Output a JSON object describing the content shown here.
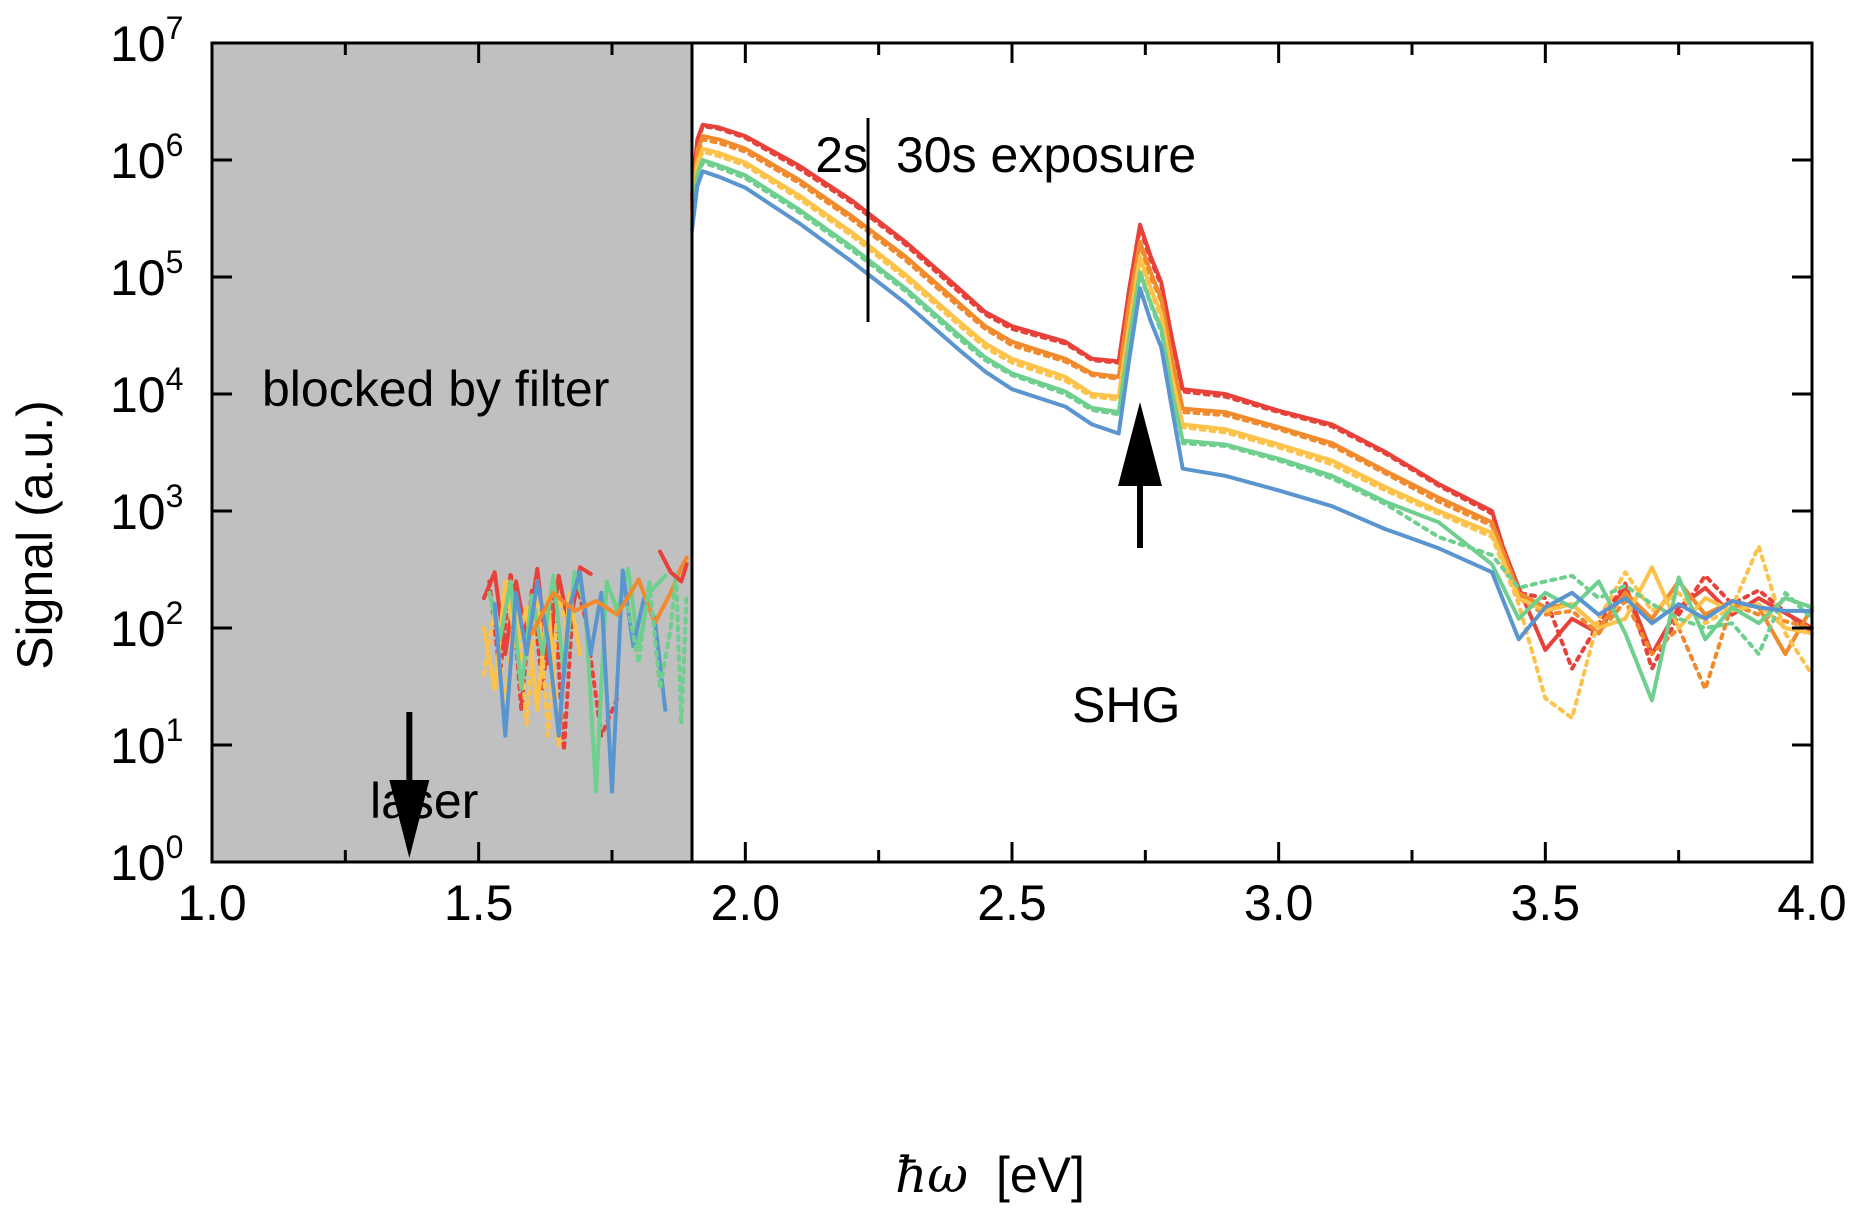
{
  "chart_data": {
    "type": "line",
    "title": "",
    "xlabel_symbol": "ħω",
    "xlabel_unit": "[eV]",
    "ylabel": "Signal (a.u.)",
    "xlim": [
      1.0,
      4.0
    ],
    "ylim": [
      1,
      10000000
    ],
    "yscale": "log",
    "x_ticks": [
      1.0,
      1.5,
      2.0,
      2.5,
      3.0,
      3.5,
      4.0
    ],
    "x_tick_labels": [
      "1.0",
      "1.5",
      "2.0",
      "2.5",
      "3.0",
      "3.5",
      "4.0"
    ],
    "y_ticks": [
      1,
      10,
      100,
      1000,
      10000,
      100000,
      1000000,
      10000000
    ],
    "y_tick_base": "10",
    "y_tick_exponents": [
      "0",
      "1",
      "2",
      "3",
      "4",
      "5",
      "6",
      "7"
    ],
    "grid": false,
    "shaded_region": {
      "x": [
        1.0,
        1.9
      ],
      "color": "#c0c0c0"
    },
    "annotations": {
      "blocked": "blocked by filter",
      "laser": "laser",
      "shg": "SHG",
      "exposure_short": "2s",
      "exposure_long": "30s exposure"
    },
    "markers": {
      "exposure_divider_x": 2.23,
      "laser_x": 1.37,
      "shg_x": 2.74
    },
    "series_colors": [
      "#e8413a",
      "#f08a2c",
      "#fcc24a",
      "#6fcf8f",
      "#5b95cf"
    ],
    "series": [
      {
        "color": "#e8413a",
        "dash": "solid",
        "x": [
          1.9,
          1.91,
          1.92,
          1.95,
          2.0,
          2.1,
          2.2,
          2.3,
          2.4,
          2.45,
          2.5,
          2.6,
          2.65,
          2.7,
          2.72,
          2.74,
          2.76,
          2.78,
          2.8,
          2.82,
          2.9,
          3.0,
          3.1,
          3.2,
          3.3,
          3.4,
          3.42,
          3.45,
          3.5,
          3.55,
          3.6,
          3.65,
          3.7,
          3.75,
          3.8,
          3.85,
          3.9,
          4.0
        ],
        "y": [
          500000,
          1500000,
          2000000,
          1900000,
          1600000,
          900000,
          450000,
          200000,
          80000,
          50000,
          38000,
          28000,
          20000,
          19000,
          80000,
          280000,
          150000,
          90000,
          30000,
          11000,
          10000,
          7200,
          5500,
          3200,
          1700,
          1000,
          500,
          220,
          65,
          120,
          90,
          230,
          60,
          150,
          220,
          130,
          180,
          100
        ]
      },
      {
        "color": "#e8413a",
        "dash": "dotted",
        "x": [
          1.9,
          1.91,
          1.92,
          1.95,
          2.0,
          2.1,
          2.2,
          2.3,
          2.4,
          2.45,
          2.5,
          2.6,
          2.65,
          2.7,
          2.72,
          2.74,
          2.76,
          2.78,
          2.8,
          2.82,
          2.9,
          3.0,
          3.1,
          3.2,
          3.3,
          3.4,
          3.45,
          3.5,
          3.55,
          3.6,
          3.65,
          3.7,
          3.75,
          3.8,
          3.85,
          3.9,
          4.0
        ],
        "y": [
          450000,
          1400000,
          1950000,
          1850000,
          1550000,
          850000,
          430000,
          190000,
          75000,
          48000,
          36000,
          27000,
          19500,
          18500,
          75000,
          260000,
          140000,
          85000,
          29000,
          10500,
          9500,
          7000,
          5300,
          3100,
          1650,
          950,
          200,
          180,
          45,
          110,
          240,
          45,
          130,
          280,
          160,
          210,
          90
        ]
      },
      {
        "color": "#f08a2c",
        "dash": "solid",
        "x": [
          1.9,
          1.91,
          1.92,
          1.95,
          2.0,
          2.1,
          2.2,
          2.3,
          2.4,
          2.45,
          2.5,
          2.6,
          2.65,
          2.7,
          2.72,
          2.74,
          2.76,
          2.78,
          2.8,
          2.82,
          2.9,
          3.0,
          3.1,
          3.2,
          3.3,
          3.4,
          3.45,
          3.5,
          3.55,
          3.6,
          3.65,
          3.7,
          3.75,
          3.8,
          3.85,
          3.9,
          3.95,
          4.0
        ],
        "y": [
          400000,
          1200000,
          1600000,
          1500000,
          1250000,
          680000,
          330000,
          150000,
          60000,
          38000,
          28000,
          20000,
          15000,
          14000,
          60000,
          200000,
          110000,
          65000,
          20000,
          7500,
          7000,
          5200,
          3800,
          2200,
          1300,
          800,
          200,
          150,
          160,
          100,
          200,
          120,
          250,
          130,
          170,
          150,
          60,
          150
        ]
      },
      {
        "color": "#f08a2c",
        "dash": "dotted",
        "x": [
          1.9,
          1.91,
          1.92,
          1.95,
          2.0,
          2.1,
          2.2,
          2.3,
          2.4,
          2.45,
          2.5,
          2.6,
          2.65,
          2.7,
          2.72,
          2.74,
          2.76,
          2.78,
          2.8,
          2.82,
          2.9,
          3.0,
          3.1,
          3.2,
          3.3,
          3.4,
          3.45,
          3.5,
          3.55,
          3.6,
          3.65,
          3.7,
          3.75,
          3.8,
          3.85,
          3.9,
          4.0
        ],
        "y": [
          380000,
          1100000,
          1500000,
          1400000,
          1180000,
          640000,
          310000,
          140000,
          56000,
          36000,
          26000,
          19000,
          14500,
          13500,
          55000,
          190000,
          100000,
          62000,
          19000,
          7000,
          6600,
          5000,
          3600,
          2100,
          1200,
          750,
          180,
          130,
          140,
          90,
          170,
          60,
          100,
          30,
          160,
          130,
          100
        ]
      },
      {
        "color": "#fcc24a",
        "dash": "solid",
        "x": [
          1.9,
          1.91,
          1.92,
          1.95,
          2.0,
          2.1,
          2.2,
          2.3,
          2.4,
          2.45,
          2.5,
          2.6,
          2.65,
          2.7,
          2.72,
          2.74,
          2.76,
          2.78,
          2.8,
          2.82,
          2.9,
          3.0,
          3.1,
          3.2,
          3.3,
          3.4,
          3.45,
          3.5,
          3.55,
          3.6,
          3.65,
          3.7,
          3.75,
          3.8,
          3.85,
          3.9,
          3.95,
          4.0
        ],
        "y": [
          350000,
          950000,
          1250000,
          1150000,
          950000,
          500000,
          240000,
          105000,
          42000,
          27000,
          20000,
          14000,
          10000,
          9500,
          40000,
          150000,
          80000,
          48000,
          14000,
          5500,
          5000,
          3700,
          2700,
          1600,
          1000,
          650,
          180,
          140,
          160,
          100,
          120,
          330,
          100,
          180,
          140,
          160,
          100,
          90
        ]
      },
      {
        "color": "#fcc24a",
        "dash": "dotted",
        "x": [
          1.9,
          1.91,
          1.92,
          1.95,
          2.0,
          2.1,
          2.2,
          2.3,
          2.4,
          2.45,
          2.5,
          2.6,
          2.65,
          2.7,
          2.72,
          2.74,
          2.76,
          2.78,
          2.8,
          2.82,
          2.9,
          3.0,
          3.1,
          3.2,
          3.3,
          3.4,
          3.45,
          3.5,
          3.55,
          3.6,
          3.65,
          3.7,
          3.75,
          3.8,
          3.85,
          3.9,
          3.95,
          4.0
        ],
        "y": [
          330000,
          900000,
          1180000,
          1080000,
          900000,
          470000,
          225000,
          98000,
          39000,
          25000,
          18500,
          13000,
          9500,
          9000,
          37000,
          140000,
          75000,
          45000,
          13000,
          5200,
          4700,
          3500,
          2500,
          1500,
          950,
          600,
          160,
          25,
          17,
          120,
          300,
          140,
          200,
          110,
          150,
          500,
          90,
          40
        ]
      },
      {
        "color": "#6fcf8f",
        "dash": "solid",
        "x": [
          1.9,
          1.91,
          1.92,
          1.95,
          2.0,
          2.1,
          2.2,
          2.3,
          2.4,
          2.45,
          2.5,
          2.6,
          2.65,
          2.7,
          2.72,
          2.74,
          2.76,
          2.78,
          2.8,
          2.82,
          2.9,
          3.0,
          3.1,
          3.2,
          3.3,
          3.4,
          3.45,
          3.5,
          3.55,
          3.6,
          3.65,
          3.7,
          3.75,
          3.8,
          3.85,
          3.9,
          3.95,
          4.0
        ],
        "y": [
          300000,
          750000,
          1000000,
          900000,
          740000,
          380000,
          180000,
          80000,
          32000,
          20500,
          15000,
          10500,
          7600,
          7000,
          30000,
          110000,
          60000,
          36000,
          10500,
          4000,
          3700,
          2800,
          2000,
          1200,
          800,
          350,
          120,
          200,
          150,
          250,
          90,
          24,
          270,
          80,
          150,
          110,
          180,
          150
        ]
      },
      {
        "color": "#6fcf8f",
        "dash": "dotted",
        "x": [
          1.9,
          1.91,
          1.92,
          1.95,
          2.0,
          2.1,
          2.2,
          2.3,
          2.4,
          2.45,
          2.5,
          2.6,
          2.65,
          2.7,
          2.72,
          2.74,
          2.76,
          2.78,
          2.8,
          2.82,
          2.9,
          3.0,
          3.1,
          3.2,
          3.3,
          3.4,
          3.45,
          3.5,
          3.55,
          3.6,
          3.65,
          3.7,
          3.75,
          3.8,
          3.85,
          3.9,
          3.95,
          4.0
        ],
        "y": [
          280000,
          700000,
          950000,
          860000,
          700000,
          360000,
          170000,
          76000,
          30000,
          19500,
          14500,
          10000,
          7300,
          6700,
          28000,
          105000,
          58000,
          34000,
          10000,
          3800,
          3600,
          2700,
          1900,
          1150,
          600,
          420,
          220,
          250,
          280,
          180,
          230,
          160,
          120,
          100,
          110,
          60,
          200,
          120
        ]
      },
      {
        "color": "#5b95cf",
        "dash": "solid",
        "x": [
          1.9,
          1.91,
          1.92,
          1.95,
          2.0,
          2.1,
          2.2,
          2.3,
          2.4,
          2.45,
          2.5,
          2.6,
          2.65,
          2.7,
          2.72,
          2.74,
          2.76,
          2.78,
          2.8,
          2.82,
          2.9,
          3.0,
          3.1,
          3.2,
          3.3,
          3.4,
          3.45,
          3.5,
          3.55,
          3.6,
          3.65,
          3.7,
          3.75,
          3.8,
          3.85,
          3.9,
          3.95,
          4.0
        ],
        "y": [
          250000,
          600000,
          800000,
          720000,
          580000,
          290000,
          135000,
          60000,
          24000,
          15500,
          11000,
          7800,
          5500,
          4600,
          20000,
          80000,
          42000,
          25000,
          7500,
          2300,
          2000,
          1500,
          1100,
          700,
          480,
          300,
          80,
          150,
          200,
          130,
          180,
          110,
          160,
          120,
          170,
          150,
          140,
          140
        ]
      }
    ],
    "noise_region_series": [
      {
        "color": "#e8413a",
        "dash": "solid",
        "x": [
          1.51,
          1.53,
          1.55,
          1.57,
          1.59,
          1.61,
          1.63,
          1.65,
          1.67,
          1.69,
          1.71
        ],
        "y": [
          180,
          300,
          60,
          250,
          80,
          320,
          50,
          280,
          100,
          330,
          290
        ]
      },
      {
        "color": "#e8413a",
        "dash": "dotted",
        "x": [
          1.52,
          1.54,
          1.56,
          1.58,
          1.6,
          1.62,
          1.64,
          1.66,
          1.68,
          1.7,
          1.73,
          1.76
        ],
        "y": [
          250,
          40,
          300,
          20,
          220,
          30,
          250,
          9,
          280,
          120,
          12,
          25
        ]
      },
      {
        "color": "#fcc24a",
        "dash": "solid",
        "x": [
          1.51,
          1.53,
          1.55,
          1.57,
          1.59,
          1.61,
          1.63,
          1.65,
          1.67,
          1.69
        ],
        "y": [
          100,
          30,
          250,
          70,
          150,
          20,
          180,
          10,
          200,
          60
        ]
      },
      {
        "color": "#fcc24a",
        "dash": "dotted",
        "x": [
          1.51,
          1.53,
          1.55,
          1.57,
          1.59,
          1.61,
          1.63,
          1.65,
          1.67
        ],
        "y": [
          40,
          150,
          20,
          200,
          15,
          260,
          12,
          190,
          80
        ]
      },
      {
        "color": "#6fcf8f",
        "dash": "solid",
        "x": [
          1.52,
          1.54,
          1.56,
          1.58,
          1.6,
          1.62,
          1.64,
          1.66,
          1.68,
          1.7,
          1.72,
          1.74,
          1.76,
          1.78,
          1.8,
          1.82,
          1.85
        ],
        "y": [
          200,
          80,
          250,
          30,
          190,
          60,
          280,
          40,
          300,
          150,
          4,
          250,
          140,
          320,
          70,
          200,
          280
        ]
      },
      {
        "color": "#5b95cf",
        "dash": "solid",
        "x": [
          1.53,
          1.55,
          1.57,
          1.59,
          1.61,
          1.63,
          1.65,
          1.67,
          1.69,
          1.71,
          1.73,
          1.75,
          1.77,
          1.79,
          1.81,
          1.83,
          1.85
        ],
        "y": [
          160,
          12,
          200,
          60,
          250,
          80,
          12,
          150,
          300,
          60,
          200,
          4,
          310,
          70,
          180,
          120,
          20
        ]
      },
      {
        "color": "#f08a2c",
        "dash": "solid",
        "x": [
          1.6,
          1.64,
          1.68,
          1.72,
          1.76,
          1.8,
          1.83,
          1.86,
          1.88,
          1.89
        ],
        "y": [
          90,
          200,
          140,
          170,
          130,
          260,
          110,
          200,
          330,
          400
        ]
      },
      {
        "color": "#6fcf8f",
        "dash": "dotted",
        "x": [
          1.78,
          1.8,
          1.82,
          1.84,
          1.86,
          1.87,
          1.88,
          1.89
        ],
        "y": [
          150,
          50,
          250,
          30,
          100,
          300,
          15,
          200
        ]
      },
      {
        "color": "#e8413a",
        "dash": "solid",
        "x": [
          1.84,
          1.86,
          1.88,
          1.89
        ],
        "y": [
          450,
          300,
          250,
          350
        ]
      }
    ]
  }
}
